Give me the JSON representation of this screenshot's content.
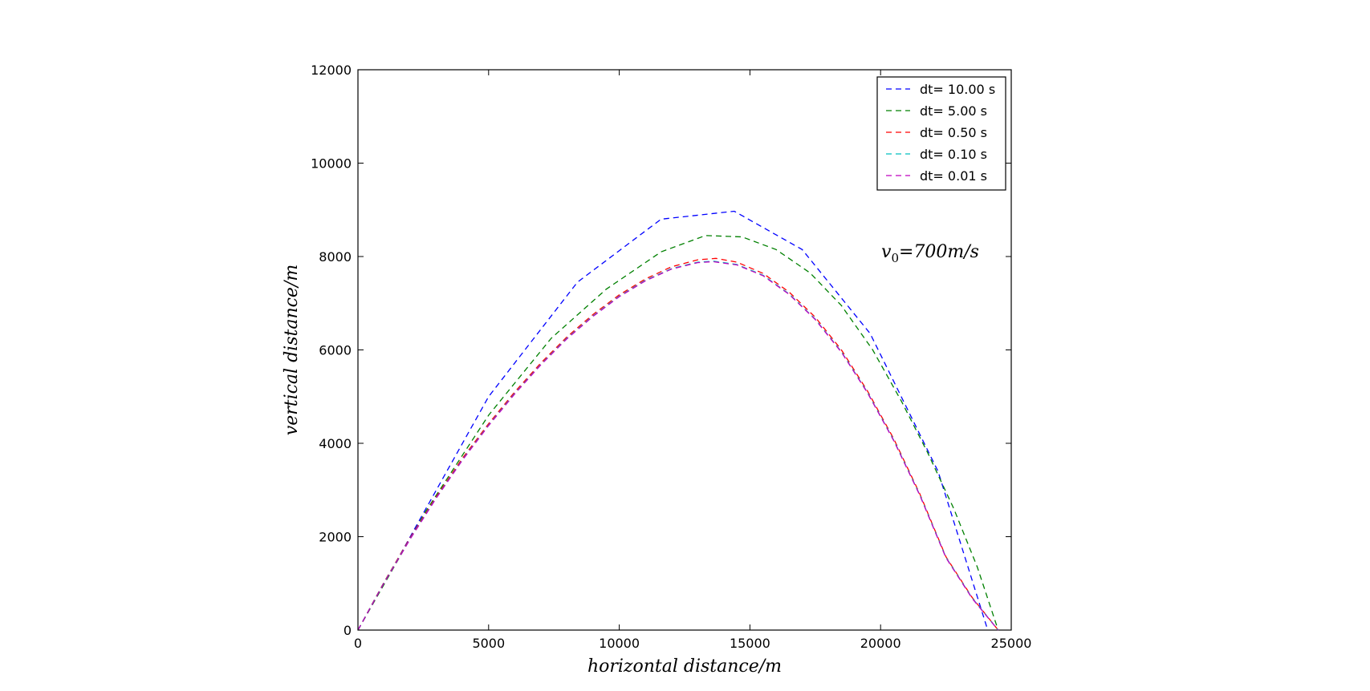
{
  "chart_data": {
    "type": "line",
    "title": "",
    "xlabel": "horizontal distance/m",
    "ylabel": "vertical distance/m",
    "xlim": [
      0,
      25000
    ],
    "ylim": [
      0,
      12000
    ],
    "xticks": [
      0,
      5000,
      10000,
      15000,
      20000,
      25000
    ],
    "yticks": [
      0,
      2000,
      4000,
      6000,
      8000,
      10000,
      12000
    ],
    "xtick_labels": [
      "0",
      "5000",
      "10000",
      "15000",
      "20000",
      "25000"
    ],
    "ytick_labels": [
      "0",
      "2000",
      "4000",
      "6000",
      "8000",
      "10000",
      "12000"
    ],
    "grid": false,
    "legend_position": "top-right",
    "annotation": {
      "base": "v",
      "sub": "0",
      "rest": "=700m/s"
    },
    "series": [
      {
        "name": "dt= 10.00 s",
        "color": "#0000ff",
        "linestyle": "dashed",
        "x": [
          0,
          5000,
          8400,
          11600,
          14400,
          17000,
          19600,
          22200,
          24100
        ],
        "y": [
          0,
          5000,
          7450,
          8800,
          8970,
          8150,
          6350,
          3400,
          0
        ]
      },
      {
        "name": "dt= 5.00 s",
        "color": "#008000",
        "linestyle": "dashed",
        "x": [
          0,
          2600,
          5000,
          7400,
          9500,
          11600,
          13300,
          14700,
          16000,
          17300,
          18500,
          19700,
          20800,
          21800,
          22800,
          23700,
          24500
        ],
        "y": [
          0,
          2550,
          4600,
          6250,
          7300,
          8100,
          8450,
          8420,
          8150,
          7650,
          6950,
          6000,
          4900,
          3800,
          2600,
          1350,
          0
        ]
      },
      {
        "name": "dt= 0.50 s",
        "color": "#ff0000",
        "linestyle": "dashed",
        "x": [
          0,
          1000,
          2000,
          3000,
          4000,
          5000,
          6000,
          7000,
          8000,
          9000,
          10000,
          11000,
          12000,
          13000,
          13700,
          14500,
          15500,
          16500,
          17500,
          18500,
          19500,
          20500,
          21500,
          22500,
          23500,
          24500
        ],
        "y": [
          0,
          1030,
          1980,
          2860,
          3680,
          4420,
          5100,
          5720,
          6280,
          6760,
          7180,
          7520,
          7780,
          7930,
          7960,
          7880,
          7640,
          7240,
          6700,
          6000,
          5120,
          4100,
          2920,
          1570,
          700,
          0
        ]
      },
      {
        "name": "dt= 0.10 s",
        "color": "#00bfbf",
        "linestyle": "dashed",
        "x": [
          0,
          1000,
          2000,
          3000,
          4000,
          5000,
          6000,
          7000,
          8000,
          9000,
          10000,
          11000,
          12000,
          13000,
          13600,
          14500,
          15500,
          16500,
          17500,
          18500,
          19500,
          20500,
          21500,
          22500,
          23500,
          24500
        ],
        "y": [
          0,
          1020,
          1960,
          2840,
          3650,
          4390,
          5070,
          5690,
          6250,
          6730,
          7150,
          7490,
          7740,
          7880,
          7900,
          7830,
          7600,
          7200,
          6660,
          5960,
          5090,
          4070,
          2900,
          1560,
          690,
          0
        ]
      },
      {
        "name": "dt= 0.01 s",
        "color": "#bf00bf",
        "linestyle": "dashed",
        "x": [
          0,
          1000,
          2000,
          3000,
          4000,
          5000,
          6000,
          7000,
          8000,
          9000,
          10000,
          11000,
          12000,
          13000,
          13600,
          14500,
          15500,
          16500,
          17500,
          18500,
          19500,
          20500,
          21500,
          22500,
          23500,
          24500
        ],
        "y": [
          0,
          1010,
          1950,
          2830,
          3640,
          4380,
          5060,
          5680,
          6240,
          6720,
          7140,
          7480,
          7730,
          7870,
          7890,
          7820,
          7590,
          7190,
          6650,
          5950,
          5080,
          4060,
          2890,
          1550,
          680,
          0
        ]
      }
    ]
  }
}
